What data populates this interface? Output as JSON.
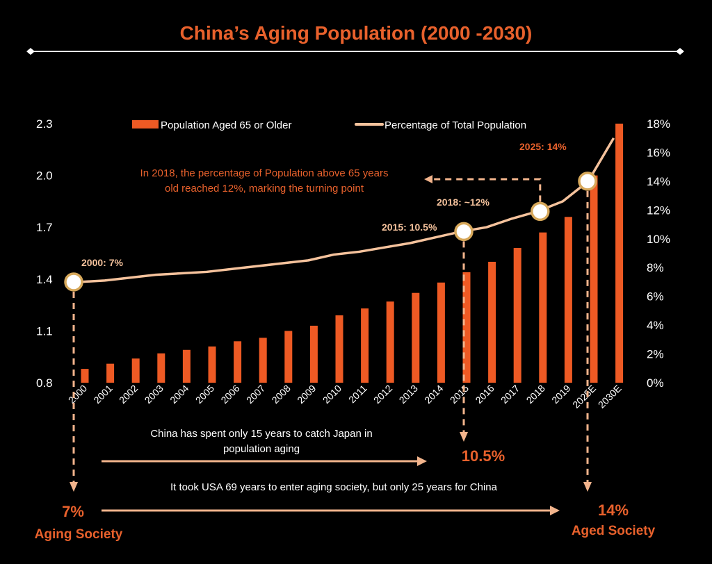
{
  "colors": {
    "bar": "#ee5a24",
    "line": "#f5c29c",
    "accent": "#e8612c",
    "arrow": "#f2b48c",
    "text": "#ffffff"
  },
  "chart_data": {
    "type": "bar",
    "title": "China’s Aging Population (2000 -2030)",
    "categories": [
      "2000",
      "2001",
      "2002",
      "2003",
      "2004",
      "2005",
      "2006",
      "2007",
      "2008",
      "2009",
      "2010",
      "2011",
      "2012",
      "2013",
      "2014",
      "2015",
      "2016",
      "2017",
      "2018",
      "2019",
      "2025E",
      "2030E"
    ],
    "y_left_ticks": [
      "0.8",
      "1.1",
      "1.4",
      "1.7",
      "2.0",
      "2.3"
    ],
    "y_left_range": [
      0.8,
      2.3
    ],
    "y_right_ticks": [
      "0%",
      "2%",
      "4%",
      "6%",
      "8%",
      "10%",
      "12%",
      "14%",
      "16%",
      "18%"
    ],
    "y_right_range": [
      0,
      18
    ],
    "series": [
      {
        "name": "Population Aged 65 or Older",
        "type": "bar",
        "axis": "left",
        "values": [
          0.88,
          0.91,
          0.94,
          0.97,
          0.99,
          1.01,
          1.04,
          1.06,
          1.1,
          1.13,
          1.19,
          1.23,
          1.27,
          1.32,
          1.38,
          1.44,
          1.5,
          1.58,
          1.67,
          1.76,
          2.0,
          2.3
        ]
      },
      {
        "name": "Percentage of Total Population",
        "type": "line",
        "axis": "right",
        "values": [
          7.0,
          7.1,
          7.3,
          7.5,
          7.6,
          7.7,
          7.9,
          8.1,
          8.3,
          8.5,
          8.9,
          9.1,
          9.4,
          9.7,
          10.1,
          10.5,
          10.8,
          11.4,
          11.9,
          12.6,
          14.0,
          17.0
        ]
      }
    ],
    "annotations": {
      "p2000": "2000: 7%",
      "p2015": "2015: 10.5%",
      "p2018": "2018: ~12%",
      "p2025": "2025: 14%",
      "turning_line1": "In 2018, the percentage of  Population above 65 years",
      "turning_line2": "old reached 12%,   marking the turning point",
      "japan_line1": "China has spent only 15 years to catch Japan in",
      "japan_line2": "population aging",
      "usa_line": "It took USA 69 years to enter aging society, but only 25 years for China",
      "val_7": "7%",
      "label_aging": "Aging Society",
      "val_105": "10.5%",
      "val_14": "14%",
      "label_aged": "Aged Society"
    }
  }
}
